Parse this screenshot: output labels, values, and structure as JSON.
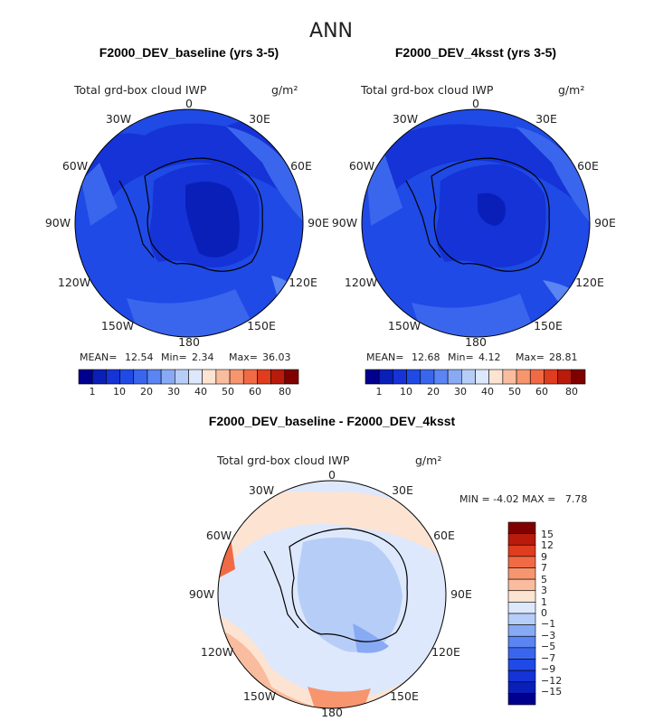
{
  "page_title": "ANN",
  "colors": {
    "abs_scale": [
      "#00008f",
      "#0a1fb8",
      "#1533d6",
      "#1f4ae6",
      "#3a66ee",
      "#5a85f2",
      "#88aaf4",
      "#b6cdf8",
      "#dde8fc",
      "#fde3d2",
      "#f9bc9f",
      "#f6956e",
      "#f06b45",
      "#e03c1e",
      "#b81a0c",
      "#800000"
    ],
    "diff_scale": [
      "#00008f",
      "#0a1fb8",
      "#1533d6",
      "#1f4ae6",
      "#3a66ee",
      "#5a85f2",
      "#88aaf4",
      "#b6cdf8",
      "#dde8fc",
      "#fde3d2",
      "#f9bc9f",
      "#f6956e",
      "#f06b45",
      "#e03c1e",
      "#b81a0c",
      "#800000"
    ]
  },
  "chart_data": [
    {
      "type": "heatmap",
      "projection": "polar-stereographic-south",
      "title": "F2000_DEV_baseline (yrs 3-5)",
      "field_label": "Total grd-box cloud IWP",
      "units": "g/m²",
      "lon_labels": [
        "0",
        "30E",
        "60E",
        "90E",
        "120E",
        "150E",
        "180",
        "150W",
        "120W",
        "90W",
        "60W",
        "30W"
      ],
      "stats": {
        "mean_label": "MEAN=",
        "mean": "12.54",
        "min_label": "Min=",
        "min": "2.34",
        "max_label": "Max=",
        "max": "36.03"
      },
      "colorbar_ticks": [
        "1",
        "10",
        "20",
        "30",
        "40",
        "50",
        "60",
        "80"
      ],
      "field_summary": {
        "ocean_mean": 12.54,
        "min": 2.34,
        "max": 36.03
      }
    },
    {
      "type": "heatmap",
      "projection": "polar-stereographic-south",
      "title": "F2000_DEV_4ksst (yrs 3-5)",
      "field_label": "Total grd-box cloud IWP",
      "units": "g/m²",
      "lon_labels": [
        "0",
        "30E",
        "60E",
        "90E",
        "120E",
        "150E",
        "180",
        "150W",
        "120W",
        "90W",
        "60W",
        "30W"
      ],
      "stats": {
        "mean_label": "MEAN=",
        "mean": "12.68",
        "min_label": "Min=",
        "min": "4.12",
        "max_label": "Max=",
        "max": "28.81"
      },
      "colorbar_ticks": [
        "1",
        "10",
        "20",
        "30",
        "40",
        "50",
        "60",
        "80"
      ],
      "field_summary": {
        "ocean_mean": 12.68,
        "min": 4.12,
        "max": 28.81
      }
    },
    {
      "type": "heatmap",
      "projection": "polar-stereographic-south",
      "title": "F2000_DEV_baseline - F2000_DEV_4ksst",
      "field_label": "Total grd-box cloud IWP",
      "units": "g/m²",
      "lon_labels": [
        "0",
        "30E",
        "60E",
        "90E",
        "120E",
        "150E",
        "180",
        "150W",
        "120W",
        "90W",
        "60W",
        "30W"
      ],
      "stats_text": "MIN = -4.02 MAX =   7.78",
      "colorbar_ticks": [
        "15",
        "12",
        "9",
        "7",
        "5",
        "3",
        "1",
        "0",
        "−1",
        "−3",
        "−5",
        "−7",
        "−9",
        "−12",
        "−15"
      ],
      "field_summary": {
        "min": -4.02,
        "max": 7.78
      }
    }
  ]
}
